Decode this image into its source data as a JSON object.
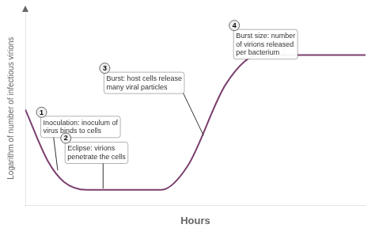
{
  "chart_data": {
    "type": "line",
    "x_label": "Hours",
    "y_label": "Logarithm of number of infectious virions",
    "x": [
      0.0,
      0.7,
      1.2,
      1.9,
      4.2,
      5.0,
      6.2,
      7.2,
      10.5
    ],
    "values": [
      4.2,
      2.2,
      1.4,
      1.1,
      1.1,
      2.0,
      5.2,
      6.3,
      6.3
    ],
    "color": "#7b3f6e",
    "xlim": [
      0.0,
      10.5
    ],
    "ylim": [
      0.5,
      8.0
    ],
    "grid": false,
    "legend": false,
    "tick_labels": false,
    "annotations": [
      {
        "label": "1",
        "text": "Inoculation: inoculum of\nvirus binds to cells",
        "box_x": 0.55,
        "box_y": 3.85,
        "line_x": 0.8,
        "x": 1.0,
        "y": 1.85
      },
      {
        "label": "2",
        "text": "Eclipse: virions\npenetrate the cells",
        "box_x": 1.3,
        "box_y": 2.85,
        "line_x": 2.4,
        "x": 2.4,
        "y": 1.15
      },
      {
        "label": "3",
        "text": "Burst: host cells release\nmany viral particles",
        "box_x": 2.5,
        "box_y": 5.55,
        "line_x": 4.6,
        "x": 5.5,
        "y": 3.2
      },
      {
        "label": "4",
        "text": "Burst size: number\nof virions released\nper bacterium",
        "box_x": 6.5,
        "box_y": 7.2,
        "line_x": 8.0,
        "x": 8.0,
        "y": 6.35
      }
    ]
  }
}
